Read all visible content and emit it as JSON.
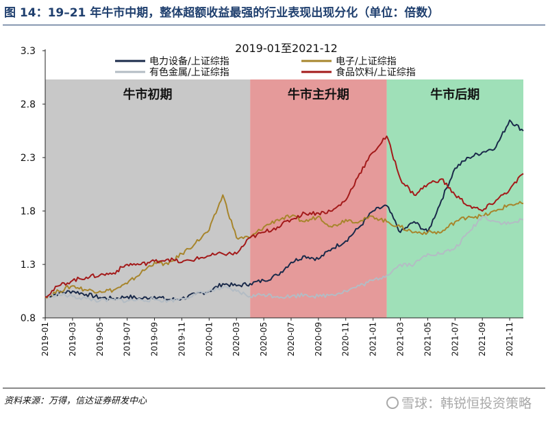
{
  "figure": {
    "title": "图 14：19–21 年牛市中期，整体超额收益最强的行业表现出现分化（单位：倍数）",
    "source": "资料来源：万得，信达证券研发中心",
    "watermark": "雪球：韩锐恒投资策略"
  },
  "chart_data": {
    "type": "line",
    "title": "2019-01至2021-12",
    "ylim": [
      0.8,
      3.3
    ],
    "yticks": [
      "0.8",
      "1.3",
      "1.8",
      "2.3",
      "2.8",
      "3.3"
    ],
    "xticks": [
      "2019-01",
      "2019-03",
      "2019-05",
      "2019-07",
      "2019-09",
      "2019-11",
      "2020-01",
      "2020-03",
      "2020-05",
      "2020-07",
      "2020-09",
      "2020-11",
      "2021-01",
      "2021-03",
      "2021-05",
      "2021-07",
      "2021-09",
      "2021-11"
    ],
    "x": [
      "2019-01",
      "2019-02",
      "2019-03",
      "2019-04",
      "2019-05",
      "2019-06",
      "2019-07",
      "2019-08",
      "2019-09",
      "2019-10",
      "2019-11",
      "2019-12",
      "2020-01",
      "2020-02",
      "2020-03",
      "2020-04",
      "2020-05",
      "2020-06",
      "2020-07",
      "2020-08",
      "2020-09",
      "2020-10",
      "2020-11",
      "2020-12",
      "2021-01",
      "2021-02",
      "2021-03",
      "2021-04",
      "2021-05",
      "2021-06",
      "2021-07",
      "2021-08",
      "2021-09",
      "2021-10",
      "2021-11",
      "2021-12"
    ],
    "phases": [
      {
        "label": "牛市初期",
        "from": "2019-01",
        "to": "2020-04",
        "color": "#c8c8c8"
      },
      {
        "label": "牛市主升期",
        "from": "2020-04",
        "to": "2021-02",
        "color": "#e59a9a"
      },
      {
        "label": "牛市后期",
        "from": "2021-02",
        "to": "2021-12",
        "color": "#9fe0b8"
      }
    ],
    "legend_position": "top",
    "series": [
      {
        "name": "电力设备/上证综指",
        "color": "#1a2a4a",
        "values": [
          1.0,
          1.03,
          1.05,
          1.02,
          0.99,
          0.98,
          1.0,
          0.98,
          1.0,
          0.97,
          0.98,
          1.02,
          1.05,
          1.12,
          1.1,
          1.12,
          1.15,
          1.2,
          1.32,
          1.38,
          1.35,
          1.45,
          1.52,
          1.65,
          1.8,
          1.85,
          1.6,
          1.7,
          1.6,
          1.9,
          2.2,
          2.3,
          2.35,
          2.4,
          2.65,
          2.55
        ]
      },
      {
        "name": "电子/上证综指",
        "color": "#a7852c",
        "values": [
          1.0,
          1.05,
          1.1,
          1.06,
          1.05,
          1.06,
          1.12,
          1.22,
          1.32,
          1.3,
          1.4,
          1.5,
          1.62,
          1.95,
          1.55,
          1.55,
          1.65,
          1.72,
          1.75,
          1.7,
          1.75,
          1.65,
          1.72,
          1.7,
          1.75,
          1.7,
          1.65,
          1.6,
          1.6,
          1.6,
          1.7,
          1.75,
          1.75,
          1.8,
          1.86,
          1.87
        ]
      },
      {
        "name": "有色金属/上证综指",
        "color": "#b3bcc4",
        "values": [
          1.0,
          1.02,
          1.0,
          0.98,
          0.96,
          0.97,
          0.96,
          0.97,
          0.97,
          0.96,
          0.98,
          1.02,
          1.05,
          1.08,
          1.05,
          1.0,
          1.02,
          1.0,
          1.0,
          1.02,
          1.0,
          1.02,
          1.05,
          1.1,
          1.15,
          1.2,
          1.3,
          1.3,
          1.4,
          1.4,
          1.45,
          1.6,
          1.75,
          1.7,
          1.68,
          1.72
        ]
      },
      {
        "name": "食品饮料/上证综指",
        "color": "#a31a1a",
        "values": [
          1.0,
          1.1,
          1.15,
          1.18,
          1.2,
          1.22,
          1.3,
          1.3,
          1.33,
          1.35,
          1.32,
          1.35,
          1.38,
          1.4,
          1.4,
          1.55,
          1.6,
          1.65,
          1.72,
          1.78,
          1.78,
          1.8,
          1.9,
          2.15,
          2.35,
          2.5,
          2.1,
          1.95,
          2.05,
          2.1,
          1.95,
          1.85,
          1.8,
          1.9,
          2.0,
          2.15
        ]
      }
    ]
  }
}
